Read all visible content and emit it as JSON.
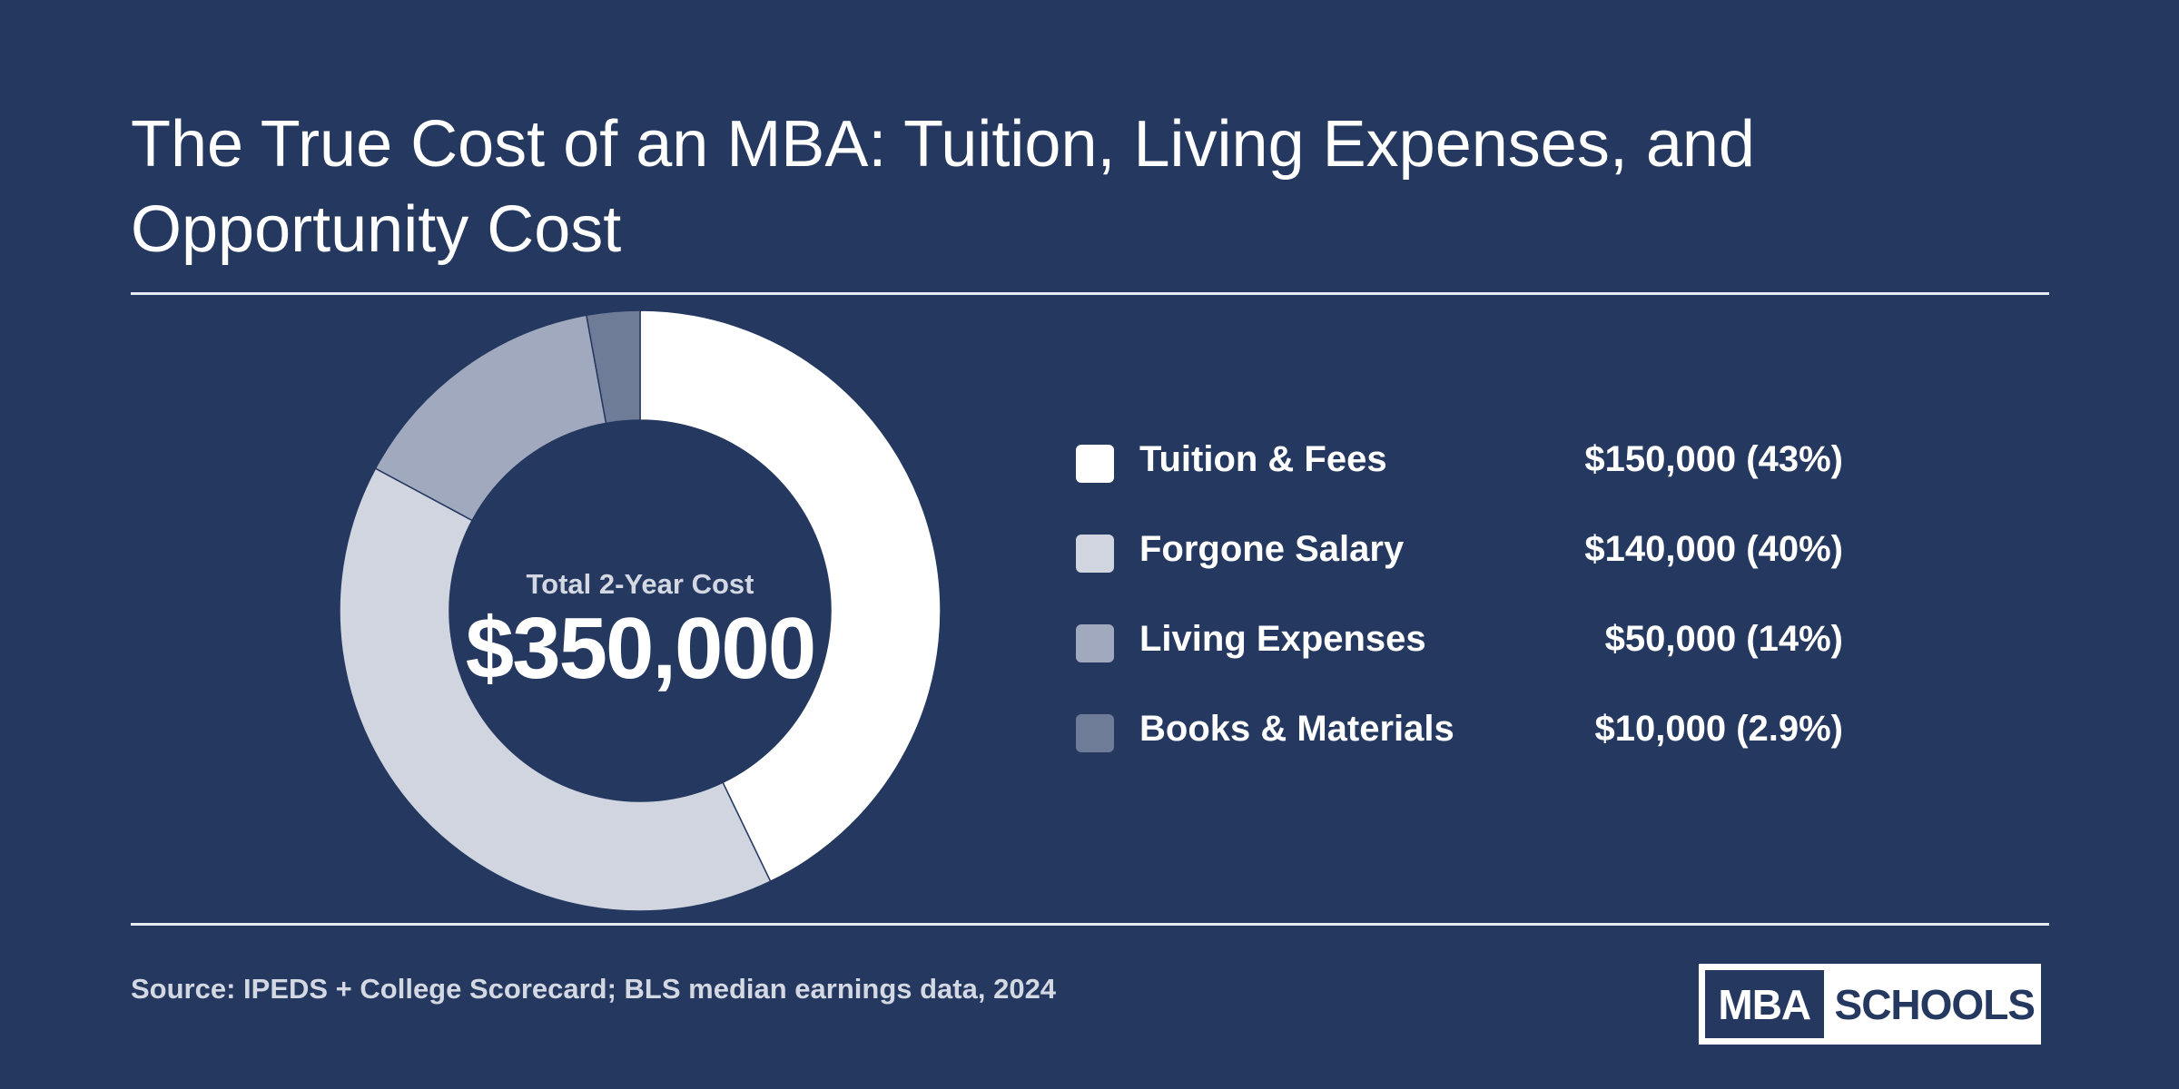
{
  "title": "The True Cost of an MBA: Tuition, Living Expenses, and Opportunity Cost",
  "center": {
    "label": "Total 2-Year Cost",
    "value": "$350,000"
  },
  "source": "Source: IPEDS + College Scorecard; BLS median earnings data, 2024",
  "logo": {
    "part1": "MBA",
    "part2": "SCHOOLS"
  },
  "colors": {
    "background": "#243860",
    "text": "#ffffff",
    "muted_text": "#d3d8e3"
  },
  "chart_data": {
    "type": "pie",
    "variant": "donut",
    "total": 350000,
    "categories": [
      "Tuition & Fees",
      "Forgone Salary",
      "Living Expenses",
      "Books & Materials"
    ],
    "values": [
      150000,
      140000,
      50000,
      10000
    ],
    "value_labels": [
      "$150,000 (43%)",
      "$140,000 (40%)",
      "$50,000 (14%)",
      "$10,000 (2.9%)"
    ],
    "colors": [
      "#ffffff",
      "#d0d5e0",
      "#a0a9bd",
      "#6f7c98"
    ],
    "legend_position": "right"
  }
}
